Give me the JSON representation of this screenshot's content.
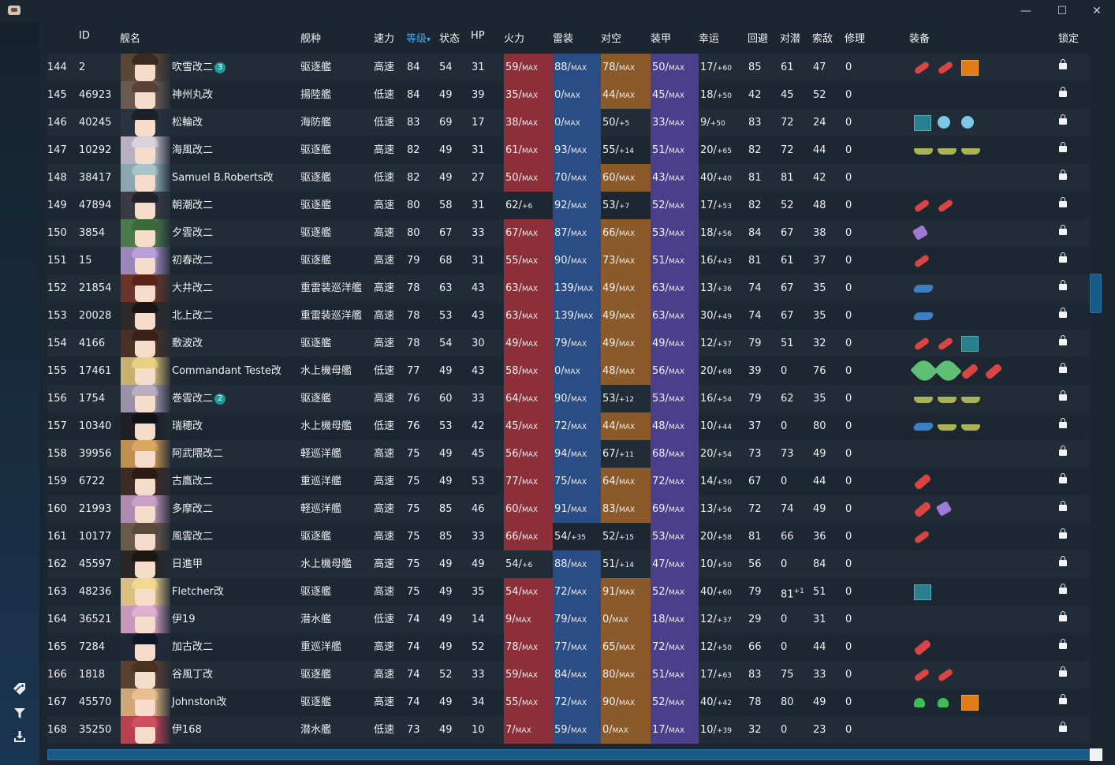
{
  "window": {
    "minimize_label": "—",
    "maximize_label": "☐",
    "close_label": "✕"
  },
  "sidebar": {
    "icons": [
      "tag-icon",
      "filter-icon",
      "download-icon"
    ]
  },
  "columns": {
    "id": "ID",
    "name": "舰名",
    "type": "舰种",
    "speed": "速力",
    "level": "等级",
    "cond": "状态",
    "hp": "HP",
    "fire": "火力",
    "torpedo": "雷装",
    "aa": "对空",
    "armor": "装甲",
    "luck": "幸运",
    "evasion": "回避",
    "asw": "对潜",
    "los": "索敌",
    "repair": "修理",
    "equip": "装备",
    "lock": "锁定",
    "level_sort_arrow": "▾"
  },
  "colors": {
    "fire_max": "#8c2f39",
    "torpedo_max": "#2b4d85",
    "aa_max": "#8a5a2b",
    "armor_max": "#4b3f8c",
    "accent": "#4fa3e0"
  },
  "rows": [
    {
      "no": "144",
      "id": "2",
      "name": "吹雪改二",
      "badge": "3",
      "type": "驱逐艦",
      "speed": "高速",
      "level": "84",
      "cond": "54",
      "hp": "31",
      "fire": "59",
      "fire_s": "MAX",
      "tor": "88",
      "tor_s": "MAX",
      "aa": "78",
      "aa_s": "MAX",
      "arm": "50",
      "arm_s": "MAX",
      "luck": "17",
      "luck_s": "+60",
      "eva": "85",
      "asw": "61",
      "asw_s": "",
      "los": "47",
      "rep": "0",
      "equip": [
        "torp",
        "torp",
        "radar-o"
      ],
      "av": "#5a4636",
      "hair": "#3a2a20"
    },
    {
      "no": "145",
      "id": "46923",
      "name": "神州丸改",
      "badge": "",
      "type": "揚陸艦",
      "speed": "低速",
      "level": "84",
      "cond": "49",
      "hp": "39",
      "fire": "35",
      "fire_s": "MAX",
      "tor": "0",
      "tor_s": "MAX",
      "aa": "44",
      "aa_s": "MAX",
      "arm": "45",
      "arm_s": "MAX",
      "luck": "18",
      "luck_s": "+50",
      "eva": "42",
      "asw": "45",
      "asw_s": "",
      "los": "52",
      "rep": "0",
      "equip": [],
      "av": "#6b5a52",
      "hair": "#5a4036"
    },
    {
      "no": "146",
      "id": "40245",
      "name": "松輪改",
      "badge": "",
      "type": "海防艦",
      "speed": "低速",
      "level": "83",
      "cond": "69",
      "hp": "17",
      "fire": "38",
      "fire_s": "MAX",
      "tor": "0",
      "tor_s": "MAX",
      "aa": "50",
      "aa_s": "+5",
      "arm": "33",
      "arm_s": "MAX",
      "luck": "9",
      "luck_s": "+50",
      "eva": "83",
      "asw": "72",
      "asw_s": "",
      "los": "24",
      "rep": "0",
      "equip": [
        "radar",
        "depth",
        "depth"
      ],
      "av": "#2a3440",
      "hair": "#1a1f28"
    },
    {
      "no": "147",
      "id": "10292",
      "name": "海風改二",
      "badge": "",
      "type": "驱逐艦",
      "speed": "高速",
      "level": "82",
      "cond": "49",
      "hp": "31",
      "fire": "61",
      "fire_s": "MAX",
      "tor": "93",
      "tor_s": "MAX",
      "aa": "55",
      "aa_s": "+14",
      "arm": "51",
      "arm_s": "MAX",
      "luck": "20",
      "luck_s": "+65",
      "eva": "82",
      "asw": "72",
      "asw_s": "",
      "los": "44",
      "rep": "0",
      "equip": [
        "gun",
        "gun",
        "gun"
      ],
      "av": "#b8b0c0",
      "hair": "#d8d2dc"
    },
    {
      "no": "148",
      "id": "38417",
      "name": "Samuel B.Roberts改",
      "badge": "",
      "type": "驱逐艦",
      "speed": "低速",
      "level": "82",
      "cond": "49",
      "hp": "27",
      "fire": "50",
      "fire_s": "MAX",
      "tor": "70",
      "tor_s": "MAX",
      "aa": "60",
      "aa_s": "MAX",
      "arm": "43",
      "arm_s": "MAX",
      "luck": "40",
      "luck_s": "+40",
      "eva": "81",
      "asw": "81",
      "asw_s": "",
      "los": "42",
      "rep": "0",
      "equip": [],
      "av": "#8aa6b0",
      "hair": "#a8c4c8"
    },
    {
      "no": "149",
      "id": "47894",
      "name": "朝潮改二",
      "badge": "",
      "type": "驱逐艦",
      "speed": "高速",
      "level": "80",
      "cond": "58",
      "hp": "31",
      "fire": "62",
      "fire_s": "+6",
      "tor": "92",
      "tor_s": "MAX",
      "aa": "53",
      "aa_s": "+7",
      "arm": "52",
      "arm_s": "MAX",
      "luck": "17",
      "luck_s": "+53",
      "eva": "82",
      "asw": "52",
      "asw_s": "",
      "los": "48",
      "rep": "0",
      "equip": [
        "torp",
        "torp"
      ],
      "av": "#3a3a44",
      "hair": "#22222a"
    },
    {
      "no": "150",
      "id": "3854",
      "name": "夕雲改二",
      "badge": "",
      "type": "驱逐艦",
      "speed": "高速",
      "level": "80",
      "cond": "67",
      "hp": "33",
      "fire": "67",
      "fire_s": "MAX",
      "tor": "87",
      "tor_s": "MAX",
      "aa": "66",
      "aa_s": "MAX",
      "arm": "53",
      "arm_s": "MAX",
      "luck": "18",
      "luck_s": "+56",
      "eva": "84",
      "asw": "67",
      "asw_s": "",
      "los": "38",
      "rep": "0",
      "equip": [
        "drum"
      ],
      "av": "#4a7a4a",
      "hair": "#3a6a3a"
    },
    {
      "no": "151",
      "id": "15",
      "name": "初春改二",
      "badge": "",
      "type": "驱逐艦",
      "speed": "高速",
      "level": "79",
      "cond": "68",
      "hp": "31",
      "fire": "55",
      "fire_s": "MAX",
      "tor": "90",
      "tor_s": "MAX",
      "aa": "73",
      "aa_s": "MAX",
      "arm": "51",
      "arm_s": "MAX",
      "luck": "16",
      "luck_s": "+43",
      "eva": "81",
      "asw": "61",
      "asw_s": "",
      "los": "37",
      "rep": "0",
      "equip": [
        "torp"
      ],
      "av": "#9a86b8",
      "hair": "#b8a0d8"
    },
    {
      "no": "152",
      "id": "21854",
      "name": "大井改二",
      "badge": "",
      "type": "重雷装巡洋艦",
      "speed": "高速",
      "level": "78",
      "cond": "63",
      "hp": "43",
      "fire": "63",
      "fire_s": "MAX",
      "tor": "139",
      "tor_s": "MAX",
      "aa": "49",
      "aa_s": "MAX",
      "arm": "63",
      "arm_s": "MAX",
      "luck": "13",
      "luck_s": "+36",
      "eva": "74",
      "asw": "67",
      "asw_s": "",
      "los": "35",
      "rep": "0",
      "equip": [
        "plane"
      ],
      "av": "#6a3428",
      "hair": "#5a2418"
    },
    {
      "no": "153",
      "id": "20028",
      "name": "北上改二",
      "badge": "",
      "type": "重雷装巡洋艦",
      "speed": "高速",
      "level": "78",
      "cond": "53",
      "hp": "43",
      "fire": "63",
      "fire_s": "MAX",
      "tor": "139",
      "tor_s": "MAX",
      "aa": "49",
      "aa_s": "MAX",
      "arm": "63",
      "arm_s": "MAX",
      "luck": "30",
      "luck_s": "+49",
      "eva": "74",
      "asw": "67",
      "asw_s": "",
      "los": "35",
      "rep": "0",
      "equip": [
        "plane"
      ],
      "av": "#2e2a2a",
      "hair": "#1a1616"
    },
    {
      "no": "154",
      "id": "4166",
      "name": "敷波改",
      "badge": "",
      "type": "驱逐艦",
      "speed": "高速",
      "level": "78",
      "cond": "54",
      "hp": "30",
      "fire": "49",
      "fire_s": "MAX",
      "tor": "79",
      "tor_s": "MAX",
      "aa": "49",
      "aa_s": "MAX",
      "arm": "49",
      "arm_s": "MAX",
      "luck": "12",
      "luck_s": "+37",
      "eva": "79",
      "asw": "51",
      "asw_s": "",
      "los": "32",
      "rep": "0",
      "equip": [
        "torp",
        "torp",
        "radar"
      ],
      "av": "#4a3024",
      "hair": "#3a2018"
    },
    {
      "no": "155",
      "id": "17461",
      "name": "Commandant Teste改",
      "badge": "",
      "type": "水上機母艦",
      "speed": "低速",
      "level": "77",
      "cond": "49",
      "hp": "43",
      "fire": "58",
      "fire_s": "MAX",
      "tor": "0",
      "tor_s": "MAX",
      "aa": "48",
      "aa_s": "MAX",
      "arm": "56",
      "arm_s": "MAX",
      "luck": "20",
      "luck_s": "+68",
      "eva": "39",
      "asw": "0",
      "asw_s": "",
      "los": "76",
      "rep": "0",
      "equip": [
        "seaplane",
        "seaplane",
        "torp-big",
        "torp-big"
      ],
      "av": "#c8b070",
      "hair": "#e8d080"
    },
    {
      "no": "156",
      "id": "1754",
      "name": "巻雲改二",
      "badge": "2",
      "type": "驱逐艦",
      "speed": "高速",
      "level": "76",
      "cond": "60",
      "hp": "33",
      "fire": "64",
      "fire_s": "MAX",
      "tor": "90",
      "tor_s": "MAX",
      "aa": "53",
      "aa_s": "+12",
      "arm": "53",
      "arm_s": "MAX",
      "luck": "16",
      "luck_s": "+54",
      "eva": "79",
      "asw": "62",
      "asw_s": "",
      "los": "35",
      "rep": "0",
      "equip": [
        "gun",
        "gun",
        "gun"
      ],
      "av": "#9a90a8",
      "hair": "#b8aec0"
    },
    {
      "no": "157",
      "id": "10340",
      "name": "瑞穂改",
      "badge": "",
      "type": "水上機母艦",
      "speed": "低速",
      "level": "76",
      "cond": "53",
      "hp": "42",
      "fire": "45",
      "fire_s": "MAX",
      "tor": "72",
      "tor_s": "MAX",
      "aa": "44",
      "aa_s": "MAX",
      "arm": "48",
      "arm_s": "MAX",
      "luck": "10",
      "luck_s": "+44",
      "eva": "37",
      "asw": "0",
      "asw_s": "",
      "los": "80",
      "rep": "0",
      "equip": [
        "plane",
        "gun",
        "gun"
      ],
      "av": "#1e2024",
      "hair": "#101216"
    },
    {
      "no": "158",
      "id": "39956",
      "name": "阿武隈改二",
      "badge": "",
      "type": "軽巡洋艦",
      "speed": "高速",
      "level": "75",
      "cond": "49",
      "hp": "45",
      "fire": "56",
      "fire_s": "MAX",
      "tor": "94",
      "tor_s": "MAX",
      "aa": "67",
      "aa_s": "+11",
      "arm": "68",
      "arm_s": "MAX",
      "luck": "20",
      "luck_s": "+54",
      "eva": "73",
      "asw": "73",
      "asw_s": "",
      "los": "49",
      "rep": "0",
      "equip": [],
      "av": "#c09050",
      "hair": "#d8a860"
    },
    {
      "no": "159",
      "id": "6722",
      "name": "古鷹改二",
      "badge": "",
      "type": "重巡洋艦",
      "speed": "高速",
      "level": "75",
      "cond": "49",
      "hp": "53",
      "fire": "77",
      "fire_s": "MAX",
      "tor": "75",
      "tor_s": "MAX",
      "aa": "64",
      "aa_s": "MAX",
      "arm": "72",
      "arm_s": "MAX",
      "luck": "14",
      "luck_s": "+50",
      "eva": "67",
      "asw": "0",
      "asw_s": "",
      "los": "44",
      "rep": "0",
      "equip": [
        "torp-big"
      ],
      "av": "#3e2a24",
      "hair": "#2e1a14"
    },
    {
      "no": "160",
      "id": "21993",
      "name": "多摩改二",
      "badge": "",
      "type": "軽巡洋艦",
      "speed": "高速",
      "level": "75",
      "cond": "85",
      "hp": "46",
      "fire": "60",
      "fire_s": "MAX",
      "tor": "91",
      "tor_s": "MAX",
      "aa": "83",
      "aa_s": "MAX",
      "arm": "69",
      "arm_s": "MAX",
      "luck": "13",
      "luck_s": "+56",
      "eva": "72",
      "asw": "74",
      "asw_s": "",
      "los": "49",
      "rep": "0",
      "equip": [
        "torp-big",
        "drum"
      ],
      "av": "#b08ab0",
      "hair": "#c8a0c8"
    },
    {
      "no": "161",
      "id": "10177",
      "name": "風雲改二",
      "badge": "",
      "type": "驱逐艦",
      "speed": "高速",
      "level": "75",
      "cond": "85",
      "hp": "33",
      "fire": "66",
      "fire_s": "MAX",
      "tor": "54",
      "tor_s": "+35",
      "aa": "52",
      "aa_s": "+15",
      "arm": "53",
      "arm_s": "MAX",
      "luck": "20",
      "luck_s": "+58",
      "eva": "81",
      "asw": "66",
      "asw_s": "",
      "los": "36",
      "rep": "0",
      "equip": [
        "torp"
      ],
      "av": "#6a5a4a",
      "hair": "#5a4a3a"
    },
    {
      "no": "162",
      "id": "45597",
      "name": "日進甲",
      "badge": "",
      "type": "水上機母艦",
      "speed": "高速",
      "level": "75",
      "cond": "49",
      "hp": "49",
      "fire": "54",
      "fire_s": "+6",
      "tor": "88",
      "tor_s": "MAX",
      "aa": "51",
      "aa_s": "+14",
      "arm": "47",
      "arm_s": "MAX",
      "luck": "10",
      "luck_s": "+50",
      "eva": "56",
      "asw": "0",
      "asw_s": "",
      "los": "84",
      "rep": "0",
      "equip": [],
      "av": "#2a2624",
      "hair": "#1a1614"
    },
    {
      "no": "163",
      "id": "48236",
      "name": "Fletcher改",
      "badge": "",
      "type": "驱逐艦",
      "speed": "高速",
      "level": "75",
      "cond": "49",
      "hp": "35",
      "fire": "54",
      "fire_s": "MAX",
      "tor": "72",
      "tor_s": "MAX",
      "aa": "91",
      "aa_s": "MAX",
      "arm": "52",
      "arm_s": "MAX",
      "luck": "40",
      "luck_s": "+60",
      "eva": "79",
      "asw": "81",
      "asw_s": "+1",
      "los": "51",
      "rep": "0",
      "equip": [
        "radar"
      ],
      "av": "#d8c080",
      "hair": "#f0d890"
    },
    {
      "no": "164",
      "id": "36521",
      "name": "伊19",
      "badge": "",
      "type": "潜水艦",
      "speed": "低速",
      "level": "74",
      "cond": "49",
      "hp": "14",
      "fire": "9",
      "fire_s": "MAX",
      "tor": "79",
      "tor_s": "MAX",
      "aa": "0",
      "aa_s": "MAX",
      "arm": "18",
      "arm_s": "MAX",
      "luck": "12",
      "luck_s": "+37",
      "eva": "29",
      "asw": "0",
      "asw_s": "",
      "los": "31",
      "rep": "0",
      "equip": [],
      "av": "#c898b8",
      "hair": "#e0b0d0"
    },
    {
      "no": "165",
      "id": "7284",
      "name": "加古改二",
      "badge": "",
      "type": "重巡洋艦",
      "speed": "高速",
      "level": "74",
      "cond": "49",
      "hp": "52",
      "fire": "78",
      "fire_s": "MAX",
      "tor": "77",
      "tor_s": "MAX",
      "aa": "65",
      "aa_s": "MAX",
      "arm": "72",
      "arm_s": "MAX",
      "luck": "12",
      "luck_s": "+50",
      "eva": "66",
      "asw": "0",
      "asw_s": "",
      "los": "44",
      "rep": "0",
      "equip": [
        "torp-big"
      ],
      "av": "#202838",
      "hair": "#101828"
    },
    {
      "no": "166",
      "id": "1818",
      "name": "谷風丁改",
      "badge": "",
      "type": "驱逐艦",
      "speed": "高速",
      "level": "74",
      "cond": "52",
      "hp": "33",
      "fire": "59",
      "fire_s": "MAX",
      "tor": "84",
      "tor_s": "MAX",
      "aa": "80",
      "aa_s": "MAX",
      "arm": "51",
      "arm_s": "MAX",
      "luck": "17",
      "luck_s": "+63",
      "eva": "83",
      "asw": "75",
      "asw_s": "",
      "los": "33",
      "rep": "0",
      "equip": [
        "torp",
        "torp"
      ],
      "av": "#5a4030",
      "hair": "#4a3020"
    },
    {
      "no": "167",
      "id": "45570",
      "name": "Johnston改",
      "badge": "",
      "type": "驱逐艦",
      "speed": "高速",
      "level": "74",
      "cond": "49",
      "hp": "34",
      "fire": "55",
      "fire_s": "MAX",
      "tor": "72",
      "tor_s": "MAX",
      "aa": "90",
      "aa_s": "MAX",
      "arm": "52",
      "arm_s": "MAX",
      "luck": "40",
      "luck_s": "+42",
      "eva": "78",
      "asw": "80",
      "asw_s": "",
      "los": "49",
      "rep": "0",
      "equip": [
        "landing",
        "landing",
        "radar-o"
      ],
      "av": "#d0a878",
      "hair": "#e8c090"
    },
    {
      "no": "168",
      "id": "35250",
      "name": "伊168",
      "badge": "",
      "type": "潜水艦",
      "speed": "低速",
      "level": "73",
      "cond": "49",
      "hp": "10",
      "fire": "7",
      "fire_s": "MAX",
      "tor": "59",
      "tor_s": "MAX",
      "aa": "0",
      "aa_s": "MAX",
      "arm": "17",
      "arm_s": "MAX",
      "luck": "10",
      "luck_s": "+39",
      "eva": "32",
      "asw": "0",
      "asw_s": "",
      "los": "23",
      "rep": "0",
      "equip": [],
      "av": "#b84050",
      "hair": "#d05060"
    }
  ]
}
